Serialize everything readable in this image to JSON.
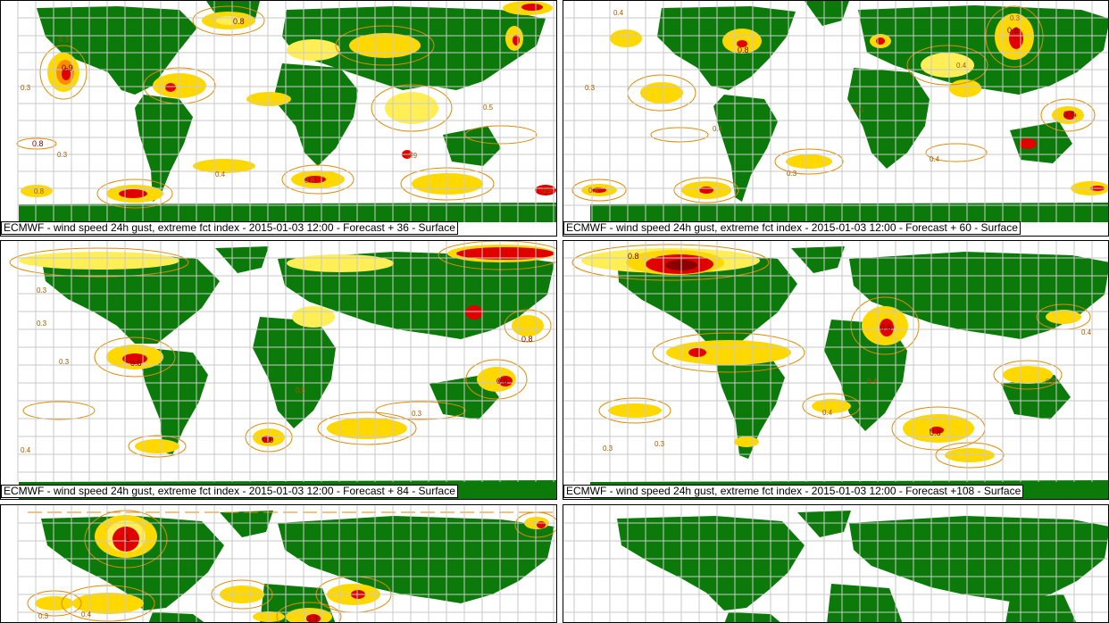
{
  "panels": [
    {
      "id": "p1",
      "caption": "ECMWF - wind speed 24h gust, extreme fct index - 2015-01-03 12:00 - Forecast + 36 - Surface"
    },
    {
      "id": "p2",
      "caption": "ECMWF - wind speed 24h gust, extreme fct index - 2015-01-03 12:00 - Forecast + 60 - Surface"
    },
    {
      "id": "p3",
      "caption": "ECMWF - wind speed 24h gust, extreme fct index - 2015-01-03 12:00 - Forecast + 84 - Surface"
    },
    {
      "id": "p4",
      "caption": "ECMWF - wind speed 24h gust, extreme fct index - 2015-01-03 12:00 - Forecast +108 - Surface"
    },
    {
      "id": "p5",
      "caption": ""
    },
    {
      "id": "p6",
      "caption": ""
    }
  ],
  "contour_labels": [
    "0.3",
    "0.4",
    "0.5",
    "0.8",
    "0.9",
    "1"
  ],
  "colors": {
    "land": "#0b7a0b",
    "ocean": "#ffffff",
    "grid": "#c9c9c9",
    "contour": "#e08a00",
    "low": "#ffd800",
    "mid": "#ffee55",
    "high": "#ff8c00",
    "extreme": "#e00000",
    "peak": "#8b0000"
  }
}
